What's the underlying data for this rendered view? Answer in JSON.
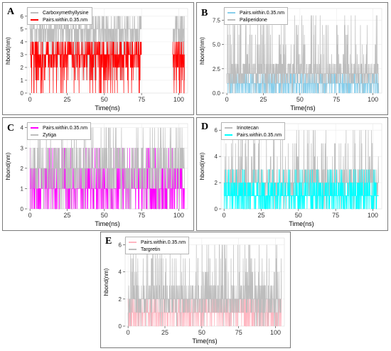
{
  "chart_data": [
    {
      "label": "A",
      "type": "line",
      "subtype": "step",
      "xlabel": "Time(ns)",
      "ylabel": "hbond(nm)",
      "xlim": [
        -2,
        106
      ],
      "ylim": [
        0,
        6.6
      ],
      "xticks": [
        "0",
        "25",
        "50",
        "75",
        "100"
      ],
      "xtick_values": [
        0,
        25,
        50,
        75,
        100
      ],
      "yticks": [
        "0",
        "1",
        "2",
        "3",
        "4",
        "5",
        "6"
      ],
      "ytick_values": [
        0,
        1,
        2,
        3,
        4,
        5,
        6
      ],
      "grid": true,
      "legend_position": "top-left",
      "series": [
        {
          "name": "Carboxymethyllysine",
          "color": "#bdbdbd",
          "level": 5,
          "range": [
            1,
            6
          ],
          "segments": [
            [
              0,
              75
            ],
            [
              96,
              104
            ]
          ]
        },
        {
          "name": "Pairs.within.0.35.nm",
          "color": "#ff0000",
          "level": 3,
          "range": [
            0,
            4
          ],
          "segments": [
            [
              0,
              75
            ],
            [
              96,
              104
            ]
          ]
        }
      ]
    },
    {
      "label": "B",
      "type": "line",
      "subtype": "step",
      "xlabel": "Time(ns)",
      "ylabel": "hbond(nm)",
      "xlim": [
        -2,
        106
      ],
      "ylim": [
        0,
        8.7
      ],
      "xticks": [
        "0",
        "25",
        "50",
        "75",
        "100"
      ],
      "xtick_values": [
        0,
        25,
        50,
        75,
        100
      ],
      "yticks": [
        "0.0",
        "2.5",
        "5.0",
        "7.5"
      ],
      "ytick_values": [
        0,
        2.5,
        5,
        7.5
      ],
      "grid": true,
      "legend_position": "top-left",
      "series": [
        {
          "name": "Pairs.within.0.35.nm",
          "color": "#87ceeb",
          "level": 1,
          "range": [
            0,
            2
          ],
          "segments": [
            [
              0,
              104
            ]
          ]
        },
        {
          "name": "Paliperidone",
          "color": "#bdbdbd",
          "level": 2,
          "range": [
            0,
            8
          ],
          "segments": [
            [
              0,
              104
            ]
          ]
        }
      ]
    },
    {
      "label": "C",
      "type": "line",
      "subtype": "step",
      "xlabel": "Time(ns)",
      "ylabel": "hbond(nm)",
      "xlim": [
        -2,
        106
      ],
      "ylim": [
        0,
        4.2
      ],
      "xticks": [
        "0",
        "25",
        "50",
        "75",
        "100"
      ],
      "xtick_values": [
        0,
        25,
        50,
        75,
        100
      ],
      "yticks": [
        "0",
        "1",
        "2",
        "3",
        "4"
      ],
      "ytick_values": [
        0,
        1,
        2,
        3,
        4
      ],
      "grid": true,
      "legend_position": "top-left",
      "series": [
        {
          "name": "Pairs.within.0.35.nm",
          "color": "#ff00ff",
          "level": 1,
          "range": [
            0,
            3
          ],
          "segments": [
            [
              0,
              104
            ]
          ]
        },
        {
          "name": "Zytiga",
          "color": "#bdbdbd",
          "level": 2,
          "range": [
            0,
            4
          ],
          "segments": [
            [
              0,
              104
            ]
          ]
        }
      ]
    },
    {
      "label": "D",
      "type": "line",
      "subtype": "step",
      "xlabel": "Time(ns)",
      "ylabel": "hbond(nm)",
      "xlim": [
        -2,
        106
      ],
      "ylim": [
        0,
        6.5
      ],
      "xticks": [
        "0",
        "25",
        "50",
        "75",
        "100"
      ],
      "xtick_values": [
        0,
        25,
        50,
        75,
        100
      ],
      "yticks": [
        "0",
        "2",
        "4",
        "6"
      ],
      "ytick_values": [
        0,
        2,
        4,
        6
      ],
      "grid": true,
      "legend_position": "top-left",
      "series": [
        {
          "name": "Irinotecan",
          "color": "#bdbdbd",
          "level": 2,
          "range": [
            0,
            6
          ],
          "segments": [
            [
              0,
              104
            ]
          ]
        },
        {
          "name": "Pairs.within.0.35.nm",
          "color": "#00ffff",
          "level": 1,
          "range": [
            0,
            3
          ],
          "segments": [
            [
              0,
              104
            ]
          ]
        }
      ]
    },
    {
      "label": "E",
      "type": "line",
      "subtype": "step",
      "xlabel": "Time(ns)",
      "ylabel": "hbond(nm)",
      "xlim": [
        -2,
        106
      ],
      "ylim": [
        0,
        6.5
      ],
      "xticks": [
        "0",
        "25",
        "50",
        "75",
        "100"
      ],
      "xtick_values": [
        0,
        25,
        50,
        75,
        100
      ],
      "yticks": [
        "0",
        "2",
        "4",
        "6"
      ],
      "ytick_values": [
        0,
        2,
        4,
        6
      ],
      "grid": true,
      "legend_position": "top-left",
      "series": [
        {
          "name": "Pairs.within.0.35.nm",
          "color": "#ffb6c1",
          "level": 1,
          "range": [
            0,
            2
          ],
          "segments": [
            [
              0,
              104
            ]
          ]
        },
        {
          "name": "Targretin",
          "color": "#bdbdbd",
          "level": 2,
          "range": [
            0,
            6
          ],
          "segments": [
            [
              0,
              104
            ]
          ]
        }
      ]
    }
  ]
}
